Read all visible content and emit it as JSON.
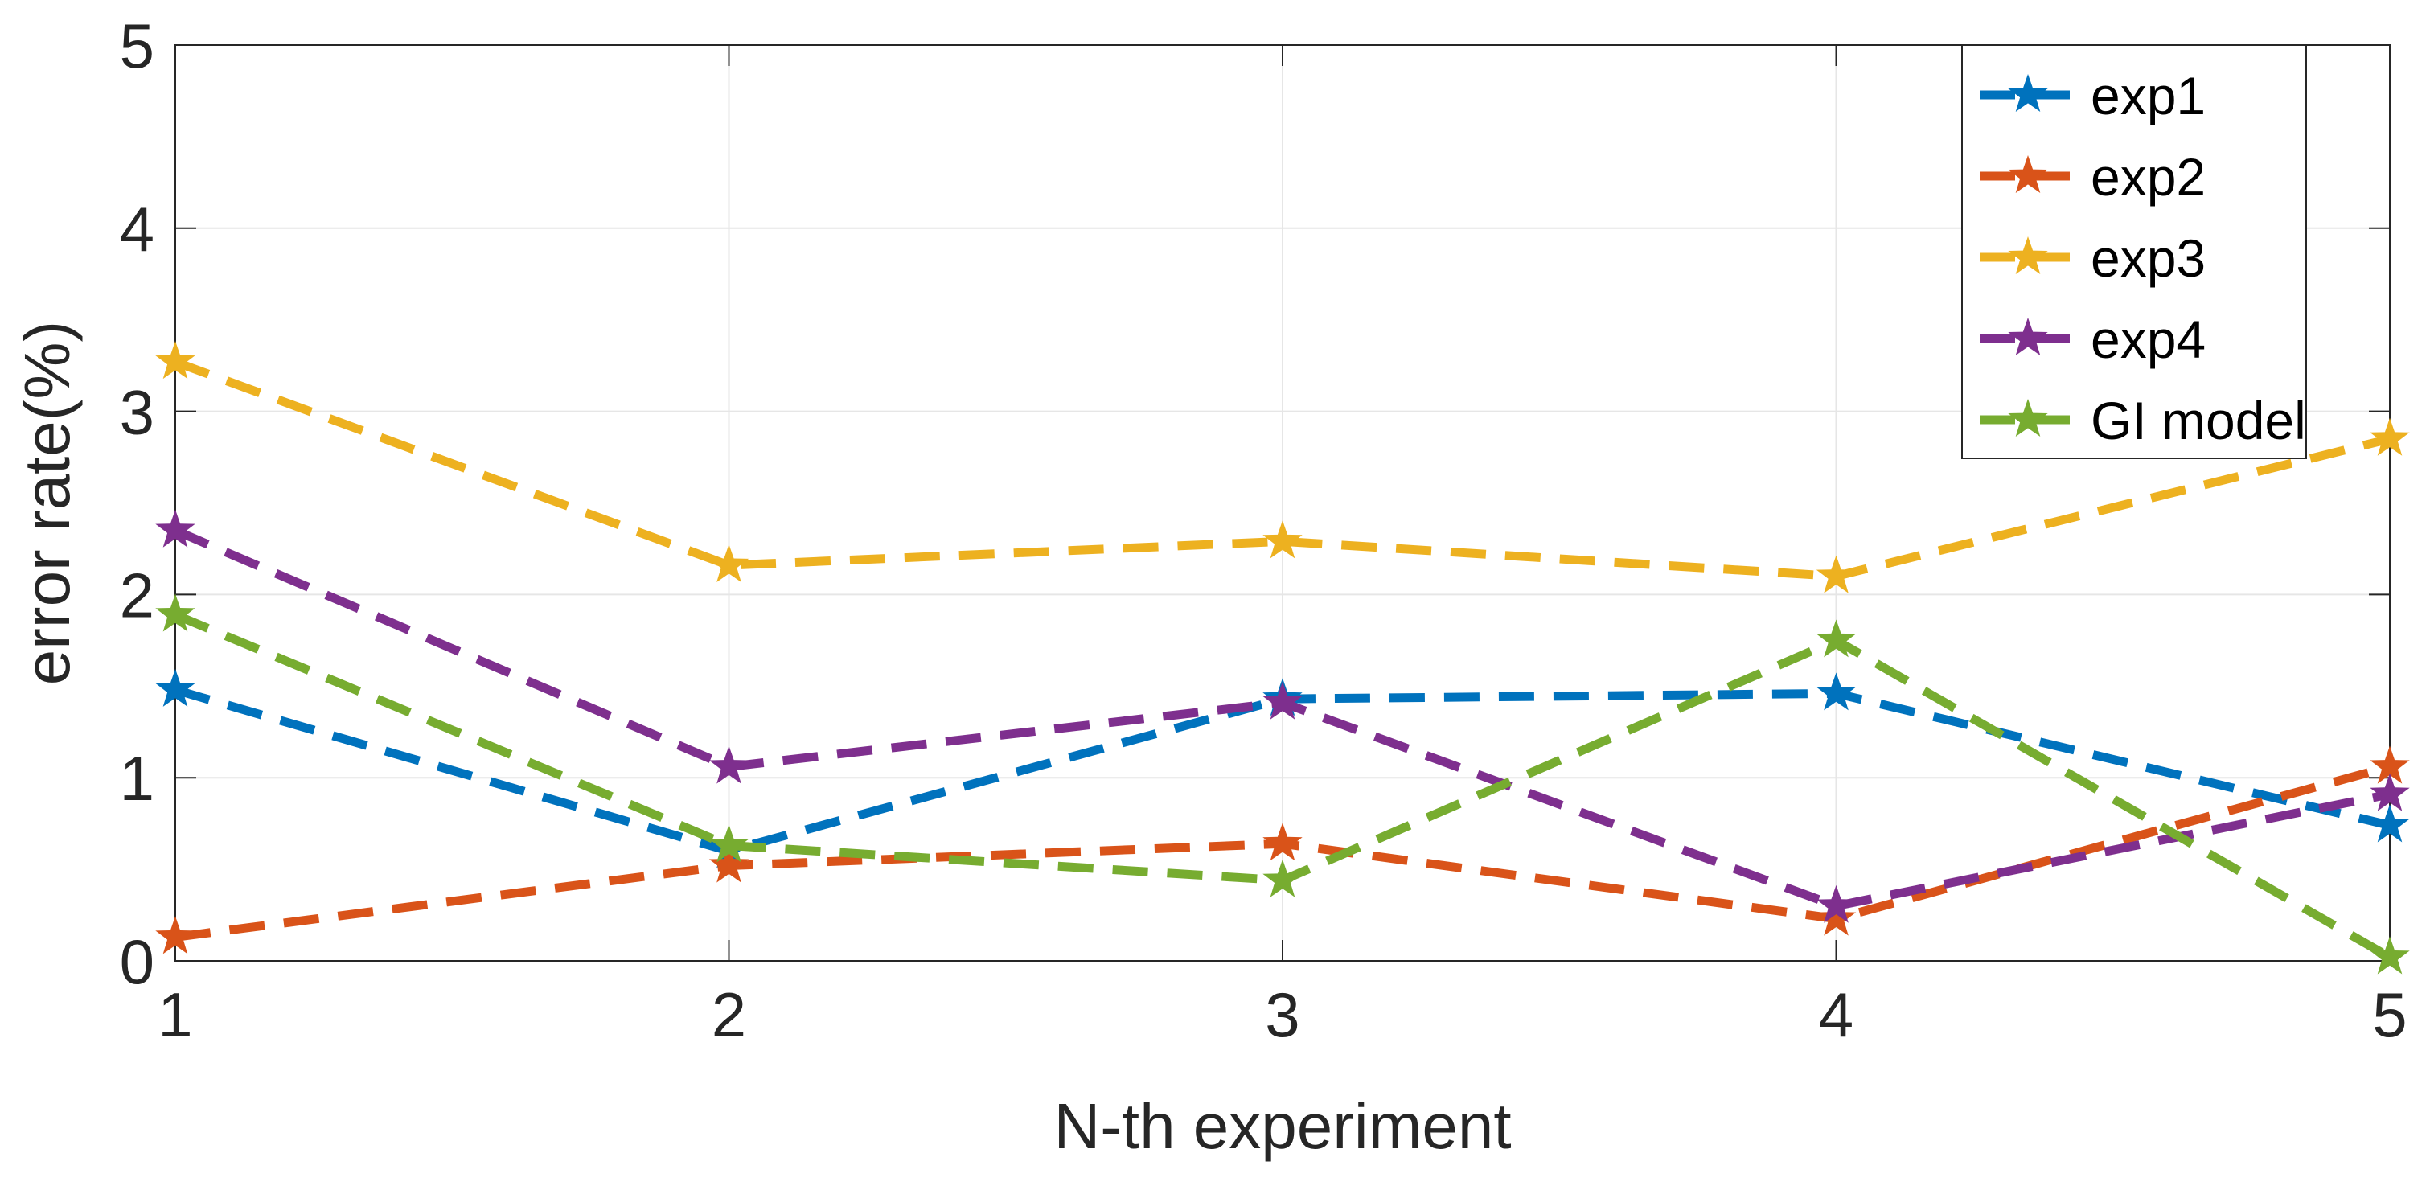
{
  "chart_data": {
    "type": "line",
    "title": "",
    "xlabel": "N-th experiment",
    "ylabel": "error rate(%)",
    "x": [
      1,
      2,
      3,
      4,
      5
    ],
    "xlim": [
      1,
      5
    ],
    "ylim": [
      0,
      5
    ],
    "xticks": [
      "1",
      "2",
      "3",
      "4",
      "5"
    ],
    "yticks": [
      "0",
      "1",
      "2",
      "3",
      "4",
      "5"
    ],
    "grid": true,
    "legend_position": "top-right",
    "line_style": "dashed",
    "marker": "star",
    "series": [
      {
        "name": "exp1",
        "color": "#0072BD",
        "values": [
          1.48,
          0.6,
          1.43,
          1.46,
          0.74
        ]
      },
      {
        "name": "exp2",
        "color": "#D95319",
        "values": [
          0.13,
          0.52,
          0.64,
          0.23,
          1.06
        ]
      },
      {
        "name": "exp3",
        "color": "#EDB120",
        "values": [
          3.27,
          2.16,
          2.29,
          2.1,
          2.85
        ]
      },
      {
        "name": "exp4",
        "color": "#7E2F8E",
        "values": [
          2.35,
          1.06,
          1.41,
          0.3,
          0.91
        ]
      },
      {
        "name": "GI model",
        "color": "#77AC30",
        "values": [
          1.89,
          0.63,
          0.44,
          1.75,
          0.02
        ]
      }
    ]
  }
}
